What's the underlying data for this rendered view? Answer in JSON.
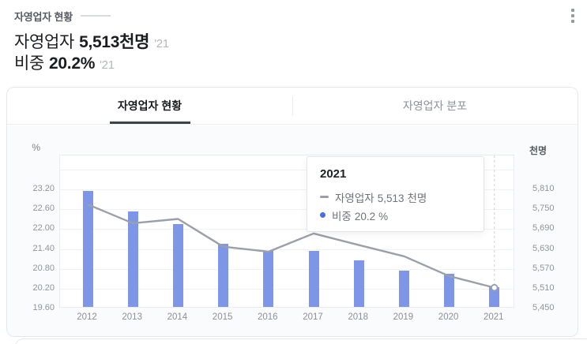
{
  "header": {
    "widget_label": "자영업자 현황",
    "icons": {
      "more_menu": "kebab-vertical-dots"
    },
    "stats": [
      {
        "label": "자영업자",
        "value": "5,513천명",
        "year": "'21"
      },
      {
        "label": "비중",
        "value": "20.2%",
        "year": "'21"
      }
    ]
  },
  "tabs": [
    {
      "label": "자영업자 현황",
      "active": true
    },
    {
      "label": "자영업자 분포",
      "active": false
    }
  ],
  "chart_data": {
    "type": "combo-bar-line",
    "categories": [
      "2012",
      "2013",
      "2014",
      "2015",
      "2016",
      "2017",
      "2018",
      "2019",
      "2020",
      "2021"
    ],
    "series": [
      {
        "name": "비중",
        "type": "bar",
        "axis": "left",
        "unit": "%",
        "color": "#7d96e8",
        "values": [
          23.1,
          22.5,
          22.1,
          21.5,
          21.3,
          21.3,
          21.0,
          20.7,
          20.6,
          20.2
        ]
      },
      {
        "name": "자영업자",
        "type": "line",
        "axis": "right",
        "unit": "천명",
        "color": "#9ba0a8",
        "values": [
          5765,
          5708,
          5721,
          5637,
          5622,
          5677,
          5642,
          5608,
          5548,
          5513
        ],
        "last_point_marker": "open-circle"
      }
    ],
    "left_axis": {
      "unit": "%",
      "min": 19.6,
      "max": 24.232,
      "grid": true,
      "ticks": [
        "23.20",
        "22.60",
        "22.00",
        "21.40",
        "20.80",
        "20.20",
        "19.60"
      ],
      "unlabeled_grid": [
        23.8
      ]
    },
    "right_axis": {
      "unit": "천명",
      "min": 5450,
      "max": 5913.2,
      "ticks": [
        "5,810",
        "5,750",
        "5,690",
        "5,630",
        "5,570",
        "5,510",
        "5,450"
      ]
    },
    "highlight": {
      "category": "2021",
      "guide_line": "dashed"
    },
    "tooltip": {
      "title": "2021",
      "rows": [
        {
          "series": "자영업자",
          "value": "5,513",
          "unit": "천명",
          "marker": "dash",
          "marker_color": "#9ba0a8"
        },
        {
          "series": "비중",
          "value": "20.2",
          "unit": "%",
          "marker": "dot",
          "marker_color": "#4a6de0"
        }
      ]
    }
  }
}
